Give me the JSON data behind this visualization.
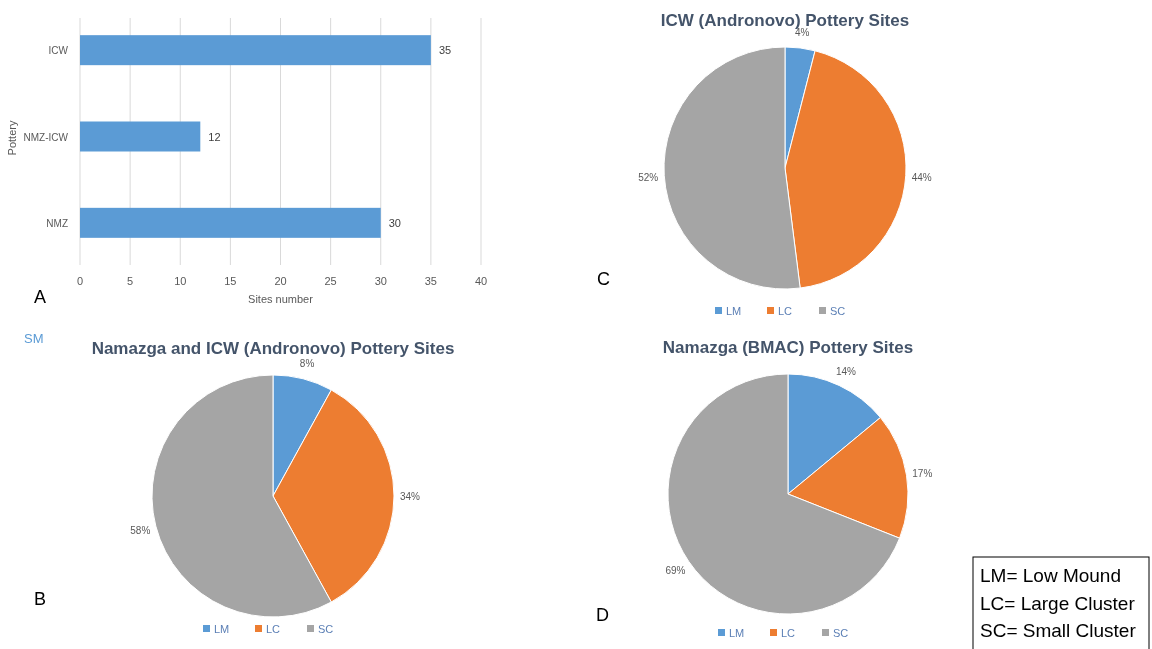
{
  "chart_data": [
    {
      "type": "bar",
      "orientation": "horizontal",
      "categories": [
        "ICW",
        "NMZ-ICW",
        "NMZ"
      ],
      "values": [
        35,
        12,
        30
      ],
      "color": "#5b9bd5",
      "xlim": [
        0,
        40
      ],
      "xticks": [
        0,
        5,
        10,
        15,
        20,
        25,
        30,
        35,
        40
      ],
      "grid": "x",
      "data_labels": true,
      "xlabel": "Sites number",
      "ylabel": "Pottery",
      "annotations": [
        "A"
      ]
    },
    {
      "type": "pie",
      "title": "ICW (Andronovo) Pottery Sites",
      "categories": [
        "LM",
        "LC",
        "SC"
      ],
      "values": [
        4,
        44,
        52
      ],
      "value_labels": [
        "4%",
        "44%",
        "52%"
      ],
      "colors": [
        "#5b9bd5",
        "#ed7d31",
        "#a5a5a5"
      ],
      "legend": "bottom",
      "annotations": [
        "C"
      ]
    },
    {
      "type": "pie",
      "title": "Namazga and ICW (Andronovo) Pottery Sites",
      "categories": [
        "LM",
        "LC",
        "SC"
      ],
      "values": [
        8,
        34,
        58
      ],
      "value_labels": [
        "8%",
        "34%",
        "58%"
      ],
      "colors": [
        "#5b9bd5",
        "#ed7d31",
        "#a5a5a5"
      ],
      "legend": "bottom",
      "annotations": [
        "SM",
        "B"
      ]
    },
    {
      "type": "pie",
      "title": "Namazga (BMAC) Pottery Sites",
      "categories": [
        "LM",
        "LC",
        "SC"
      ],
      "values": [
        14,
        17,
        69
      ],
      "value_labels": [
        "14%",
        "17%",
        "69%"
      ],
      "colors": [
        "#5b9bd5",
        "#ed7d31",
        "#a5a5a5"
      ],
      "legend": "bottom",
      "annotations": [
        "D"
      ]
    },
    {
      "type": "other",
      "annotations": [
        "LM= Low Mound",
        "LC= Large Cluster",
        "SC= Small Cluster"
      ]
    }
  ]
}
